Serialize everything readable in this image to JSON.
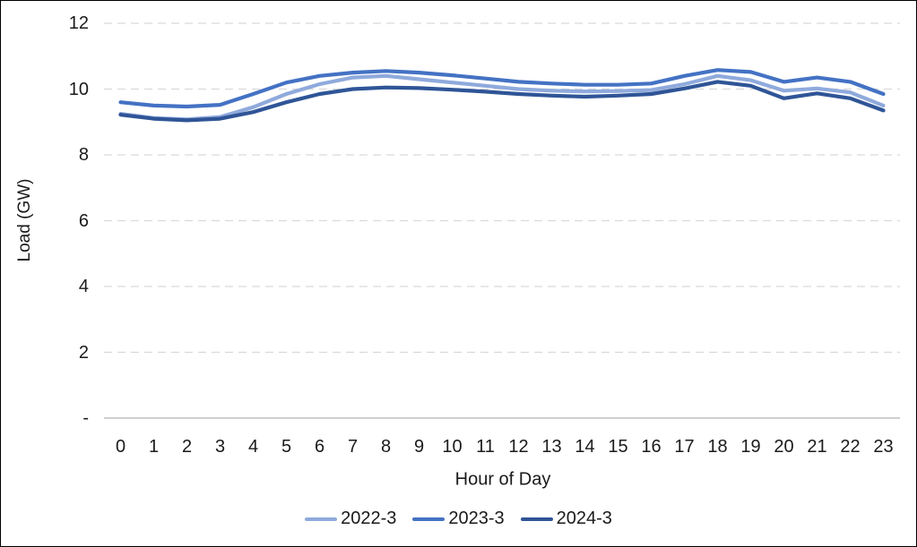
{
  "chart_data": {
    "type": "line",
    "title": "",
    "xlabel": "Hour of Day",
    "ylabel": "Load (GW)",
    "x": [
      0,
      1,
      2,
      3,
      4,
      5,
      6,
      7,
      8,
      9,
      10,
      11,
      12,
      13,
      14,
      15,
      16,
      17,
      18,
      19,
      20,
      21,
      22,
      23
    ],
    "series": [
      {
        "name": "2022-3",
        "color": "#8FAADC",
        "values": [
          9.25,
          9.12,
          9.08,
          9.15,
          9.45,
          9.85,
          10.15,
          10.35,
          10.4,
          10.3,
          10.2,
          10.1,
          10.0,
          9.95,
          9.93,
          9.94,
          9.97,
          10.15,
          10.4,
          10.27,
          9.95,
          10.02,
          9.9,
          9.5
        ]
      },
      {
        "name": "2023-3",
        "color": "#4472C4",
        "values": [
          9.6,
          9.5,
          9.47,
          9.52,
          9.85,
          10.2,
          10.4,
          10.5,
          10.55,
          10.5,
          10.42,
          10.32,
          10.22,
          10.17,
          10.13,
          10.13,
          10.17,
          10.4,
          10.58,
          10.52,
          10.22,
          10.35,
          10.22,
          9.85
        ]
      },
      {
        "name": "2024-3",
        "color": "#2F5597",
        "values": [
          9.22,
          9.1,
          9.05,
          9.1,
          9.3,
          9.6,
          9.85,
          10.0,
          10.05,
          10.03,
          9.98,
          9.92,
          9.85,
          9.8,
          9.77,
          9.8,
          9.85,
          10.02,
          10.22,
          10.1,
          9.72,
          9.87,
          9.72,
          9.35
        ]
      }
    ],
    "ylim": [
      0,
      12
    ],
    "yticks": [
      {
        "value": 0,
        "label": "-"
      },
      {
        "value": 2,
        "label": "2"
      },
      {
        "value": 4,
        "label": "4"
      },
      {
        "value": 6,
        "label": "6"
      },
      {
        "value": 8,
        "label": "8"
      },
      {
        "value": 10,
        "label": "10"
      },
      {
        "value": 12,
        "label": "12"
      }
    ],
    "grid": "horizontal-dashed",
    "legend_position": "bottom-center"
  },
  "colors": {
    "gridline": "#D9D9D9",
    "axis_line": "#BFBFBF",
    "text": "#1A1A1A",
    "background": "#FFFFFF",
    "border": "#000000"
  }
}
